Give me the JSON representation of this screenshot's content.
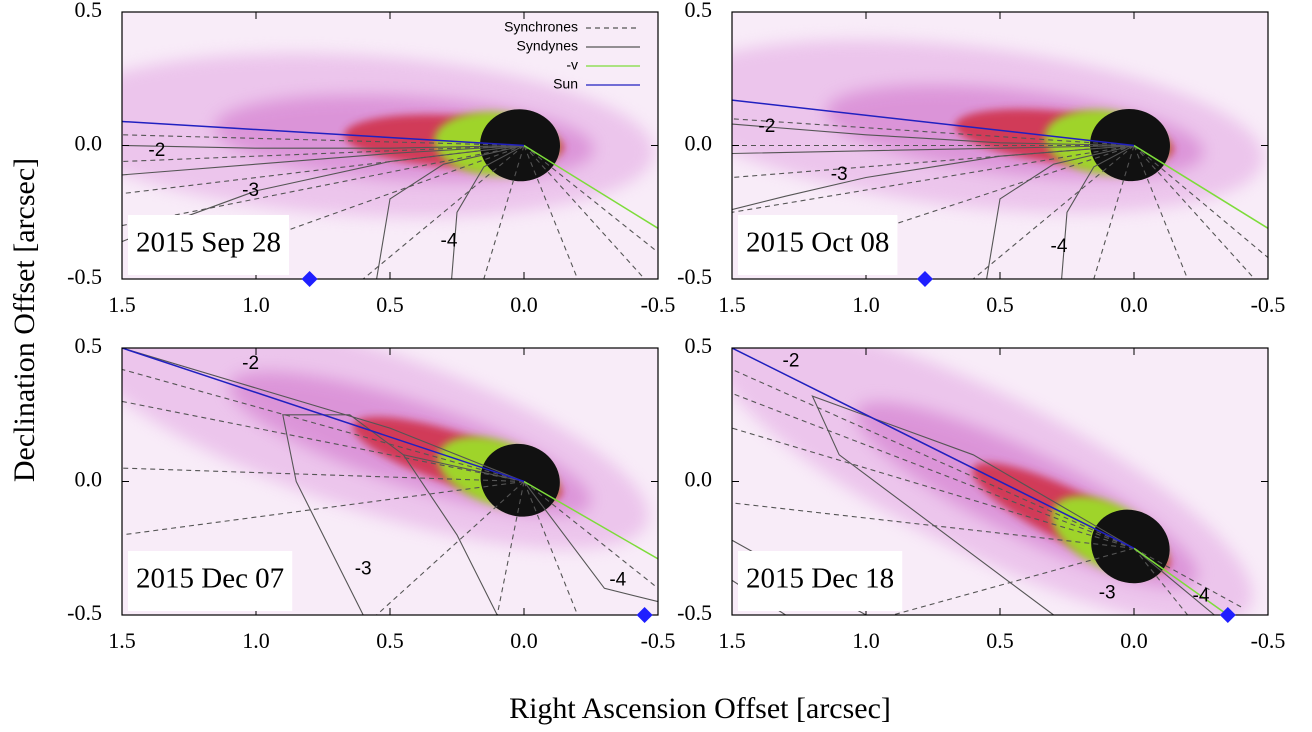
{
  "xlabel": "Right Ascension Offset [arcsec]",
  "ylabel": "Declination Offset [arcsec]",
  "chart_data": [
    {
      "type": "image",
      "title": "2015 Sep 28",
      "legend": "upper right",
      "xlim": [
        1.5,
        -0.5
      ],
      "ylim": [
        -0.5,
        0.5
      ],
      "xticks": [
        1.5,
        {
          "value": 1,
          "label": "1.0"
        },
        0.5,
        {
          "value": 0,
          "label": "0.0"
        },
        -0.5
      ],
      "yticks": [
        -0.5,
        {
          "value": 0,
          "label": "0.0"
        },
        0.5
      ],
      "nucleus": {
        "x": 0,
        "y": 0
      },
      "marker": {
        "x": 0.8,
        "y": -0.5,
        "color": "#1f1fff"
      },
      "annotations": [
        {
          "text": "-2",
          "x": 1.37,
          "y": -0.02
        },
        {
          "text": "-3",
          "x": 1.02,
          "y": -0.17
        },
        {
          "text": "-4",
          "x": 0.28,
          "y": -0.36
        }
      ],
      "series": [
        {
          "name": "Synchrones",
          "color": "#555555",
          "dashed": true,
          "x": [
            0,
            1.5,
            null,
            0,
            1.5,
            null,
            0,
            1.5,
            null,
            0,
            1.5,
            null,
            0,
            1.0,
            null,
            0,
            0.6,
            null,
            0,
            0.15,
            null,
            0,
            -0.2,
            null,
            0,
            -0.45,
            null,
            0,
            -0.5
          ],
          "y": [
            0,
            0.04,
            null,
            0,
            -0.06,
            null,
            0,
            -0.18,
            null,
            0,
            -0.3,
            null,
            0,
            -0.36,
            null,
            0,
            -0.5,
            null,
            0,
            -0.5,
            null,
            0,
            -0.5,
            null,
            0,
            -0.5,
            null,
            0,
            -0.4
          ]
        },
        {
          "name": "Syndynes",
          "color": "#555555",
          "dashed": false,
          "x": [
            0,
            0.5,
            1.0,
            1.5,
            null,
            0,
            0.5,
            1.0,
            1.5,
            null,
            0,
            0.5,
            1.0,
            1.3,
            1.5,
            null,
            0,
            0.3,
            0.5,
            0.55,
            null,
            0,
            0.15,
            0.25,
            0.27
          ],
          "y": [
            0,
            -0.01,
            -0.01,
            0,
            null,
            0,
            -0.03,
            -0.07,
            -0.11,
            null,
            0,
            -0.06,
            -0.17,
            -0.28,
            -0.36,
            null,
            0,
            -0.07,
            -0.2,
            -0.5,
            null,
            0,
            -0.08,
            -0.25,
            -0.5
          ]
        },
        {
          "name": "-v",
          "color": "#7ddc3a",
          "dashed": false,
          "x": [
            0,
            -0.5
          ],
          "y": [
            0,
            -0.31
          ]
        },
        {
          "name": "Sun",
          "color": "#2020c0",
          "dashed": false,
          "x": [
            1.5,
            0
          ],
          "y": [
            0.09,
            0
          ]
        }
      ]
    },
    {
      "type": "image",
      "title": "2015 Oct 08",
      "xlim": [
        1.5,
        -0.5
      ],
      "ylim": [
        -0.5,
        0.5
      ],
      "xticks": [
        1.5,
        {
          "value": 1,
          "label": "1.0"
        },
        0.5,
        {
          "value": 0,
          "label": "0.0"
        },
        -0.5
      ],
      "yticks": [
        -0.5,
        {
          "value": 0,
          "label": "0.0"
        },
        0.5
      ],
      "nucleus": {
        "x": 0,
        "y": 0
      },
      "marker": {
        "x": 0.78,
        "y": -0.5,
        "color": "#1f1fff"
      },
      "annotations": [
        {
          "text": "-2",
          "x": 1.37,
          "y": 0.07
        },
        {
          "text": "-3",
          "x": 1.1,
          "y": -0.11
        },
        {
          "text": "-4",
          "x": 0.28,
          "y": -0.38
        }
      ],
      "series": [
        {
          "color": "#555555",
          "dashed": true,
          "x": [
            0,
            1.5,
            null,
            0,
            1.5,
            null,
            0,
            1.5,
            null,
            0,
            1.5,
            null,
            0,
            1.0,
            null,
            0,
            0.6,
            null,
            0,
            0.15,
            null,
            0,
            -0.2,
            null,
            0,
            -0.45,
            null,
            0,
            -0.5
          ],
          "y": [
            0,
            0.1,
            null,
            0,
            0.0,
            null,
            0,
            -0.12,
            null,
            0,
            -0.25,
            null,
            0,
            -0.33,
            null,
            0,
            -0.5,
            null,
            0,
            -0.5,
            null,
            0,
            -0.5,
            null,
            0,
            -0.5,
            null,
            0,
            -0.42
          ]
        },
        {
          "color": "#555555",
          "dashed": false,
          "x": [
            0,
            0.5,
            1.0,
            1.5,
            null,
            0,
            0.5,
            1.0,
            1.5,
            null,
            0,
            0.5,
            1.0,
            1.3,
            1.5,
            null,
            0,
            0.3,
            0.5,
            0.55,
            null,
            0,
            0.15,
            0.25,
            0.27
          ],
          "y": [
            0,
            0.01,
            0.04,
            0.08,
            null,
            0,
            -0.01,
            -0.02,
            -0.03,
            null,
            0,
            -0.04,
            -0.12,
            -0.19,
            -0.24,
            null,
            0,
            -0.07,
            -0.2,
            -0.5,
            null,
            0,
            -0.08,
            -0.25,
            -0.5
          ]
        },
        {
          "color": "#7ddc3a",
          "dashed": false,
          "x": [
            0,
            -0.5
          ],
          "y": [
            0,
            -0.31
          ]
        },
        {
          "color": "#2020c0",
          "dashed": false,
          "x": [
            1.5,
            0
          ],
          "y": [
            0.17,
            0
          ]
        }
      ]
    },
    {
      "type": "image",
      "title": "2015 Dec 07",
      "xlim": [
        1.5,
        -0.5
      ],
      "ylim": [
        -0.5,
        0.5
      ],
      "xticks": [
        1.5,
        {
          "value": 1,
          "label": "1.0"
        },
        0.5,
        {
          "value": 0,
          "label": "0.0"
        },
        -0.5
      ],
      "yticks": [
        -0.5,
        {
          "value": 0,
          "label": "0.0"
        },
        0.5
      ],
      "nucleus": {
        "x": 0,
        "y": 0
      },
      "marker": {
        "x": -0.45,
        "y": -0.5,
        "color": "#1f1fff"
      },
      "annotations": [
        {
          "text": "-2",
          "x": 1.02,
          "y": 0.44
        },
        {
          "text": "-3",
          "x": 0.6,
          "y": -0.33
        },
        {
          "text": "-4",
          "x": -0.35,
          "y": -0.37
        }
      ],
      "series": [
        {
          "color": "#555555",
          "dashed": true,
          "x": [
            0,
            1.5,
            null,
            0,
            1.5,
            null,
            0,
            1.5,
            null,
            0,
            1.5,
            null,
            0,
            0.55,
            null,
            0,
            0.1,
            null,
            0,
            -0.2,
            null,
            0,
            -0.5
          ],
          "y": [
            0,
            0.42,
            null,
            0,
            0.3,
            null,
            0,
            0.05,
            null,
            0,
            -0.2,
            null,
            0,
            -0.5,
            null,
            0,
            -0.5,
            null,
            0,
            -0.5,
            null,
            0,
            -0.4
          ]
        },
        {
          "color": "#555555",
          "dashed": false,
          "x": [
            0,
            0.5,
            1.5,
            null,
            0,
            0.45,
            0.65,
            0.9,
            0.85,
            0.6,
            null,
            0.45,
            0.25,
            0.1,
            null,
            0,
            -0.3,
            -0.5
          ],
          "y": [
            0,
            0.2,
            0.5,
            null,
            0,
            0.1,
            0.25,
            0.25,
            0.0,
            -0.5,
            null,
            0.1,
            -0.2,
            -0.5,
            null,
            0,
            -0.4,
            -0.45
          ]
        },
        {
          "color": "#7ddc3a",
          "dashed": false,
          "x": [
            0,
            -0.5
          ],
          "y": [
            0,
            -0.29
          ]
        },
        {
          "color": "#2020c0",
          "dashed": false,
          "x": [
            1.5,
            0
          ],
          "y": [
            0.5,
            0
          ]
        }
      ]
    },
    {
      "type": "image",
      "title": "2015 Dec 18",
      "xlim": [
        1.5,
        -0.5
      ],
      "ylim": [
        -0.5,
        0.5
      ],
      "xticks": [
        1.5,
        {
          "value": 1,
          "label": "1.0"
        },
        0.5,
        {
          "value": 0,
          "label": "0.0"
        },
        -0.5
      ],
      "yticks": [
        -0.5,
        {
          "value": 0,
          "label": "0.0"
        },
        0.5
      ],
      "nucleus": {
        "x": 0,
        "y": -0.25
      },
      "marker": {
        "x": -0.35,
        "y": -0.5,
        "color": "#1f1fff"
      },
      "annotations": [
        {
          "text": "-2",
          "x": 1.28,
          "y": 0.45
        },
        {
          "text": "-3",
          "x": 0.1,
          "y": -0.42
        },
        {
          "text": "-4",
          "x": -0.25,
          "y": -0.43
        }
      ],
      "series": [
        {
          "color": "#555555",
          "dashed": true,
          "x": [
            0,
            1.5,
            null,
            0,
            1.5,
            null,
            0,
            1.5,
            null,
            0,
            1.5,
            null,
            0,
            0.9,
            null,
            0,
            -0.2,
            null,
            0,
            -0.4
          ],
          "y": [
            -0.25,
            0.42,
            null,
            -0.25,
            0.33,
            null,
            -0.25,
            0.2,
            null,
            -0.25,
            -0.08,
            null,
            -0.25,
            -0.5,
            null,
            -0.25,
            -0.5,
            null,
            -0.25,
            -0.47
          ]
        },
        {
          "color": "#555555",
          "dashed": false,
          "x": [
            0,
            1.5,
            null,
            0,
            0.6,
            1.2,
            1.1,
            0.3,
            null,
            1.5,
            1.0,
            null,
            1.5,
            1.3,
            null,
            0,
            -0.3
          ],
          "y": [
            -0.25,
            0.5,
            null,
            -0.25,
            0.1,
            0.32,
            0.1,
            -0.5,
            null,
            -0.22,
            -0.5,
            null,
            -0.37,
            -0.5,
            null,
            -0.25,
            -0.5
          ]
        },
        {
          "color": "#7ddc3a",
          "dashed": false,
          "x": [
            0,
            -0.35
          ],
          "y": [
            -0.25,
            -0.5
          ]
        },
        {
          "color": "#2020c0",
          "dashed": false,
          "x": [
            1.5,
            0
          ],
          "y": [
            0.5,
            -0.25
          ]
        }
      ]
    }
  ]
}
